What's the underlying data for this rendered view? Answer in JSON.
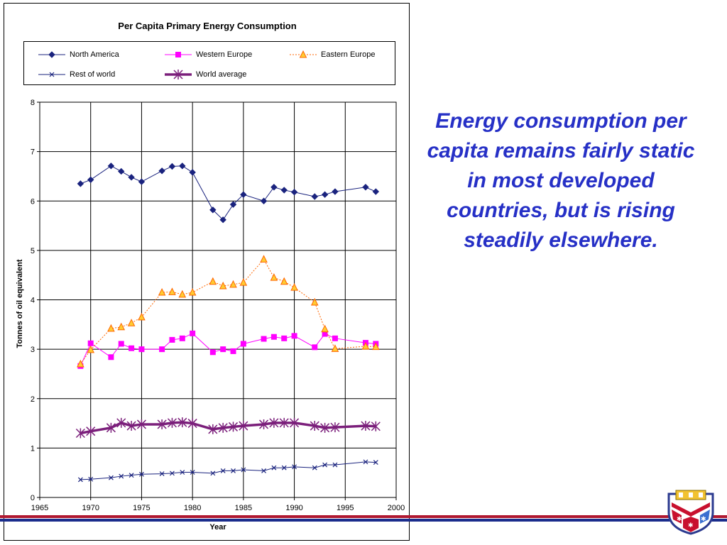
{
  "slide": {
    "callout_text": "Energy consumption per capita remains fairly static in most developed countries, but is rising steadily elsewhere.",
    "callout_color": "#2630c6",
    "band_colors": [
      "#b01830",
      "#1a2d8c"
    ],
    "crest_icon": "university-crest-icon"
  },
  "chart_data": {
    "type": "line",
    "title": "Per Capita Primary Energy Consumption",
    "xlabel": "Year",
    "ylabel": "Tonnes of oil equivalent",
    "xlim": [
      1965,
      2000
    ],
    "ylim": [
      0,
      8
    ],
    "xticks": [
      1965,
      1970,
      1975,
      1980,
      1985,
      1990,
      1995,
      2000
    ],
    "yticks": [
      0,
      1,
      2,
      3,
      4,
      5,
      6,
      7,
      8
    ],
    "grid": true,
    "legend_placement": "top",
    "series": [
      {
        "name": "North America",
        "color": "#1a237e",
        "marker": "diamond",
        "line_style": "solid",
        "x": [
          1969,
          1970,
          1972,
          1973,
          1974,
          1975,
          1977,
          1978,
          1979,
          1980,
          1982,
          1983,
          1984,
          1985,
          1987,
          1988,
          1989,
          1990,
          1992,
          1993,
          1994,
          1997,
          1998
        ],
        "y": [
          6.35,
          6.43,
          6.71,
          6.6,
          6.48,
          6.39,
          6.61,
          6.7,
          6.71,
          6.58,
          5.82,
          5.62,
          5.93,
          6.13,
          6.0,
          6.28,
          6.22,
          6.18,
          6.09,
          6.13,
          6.19,
          6.28,
          6.19
        ]
      },
      {
        "name": "Western Europe",
        "color": "#ff00ff",
        "marker": "square",
        "line_style": "solid",
        "x": [
          1969,
          1970,
          1972,
          1973,
          1974,
          1975,
          1977,
          1978,
          1979,
          1980,
          1982,
          1983,
          1984,
          1985,
          1987,
          1988,
          1989,
          1990,
          1992,
          1993,
          1994,
          1997,
          1998
        ],
        "y": [
          2.66,
          3.12,
          2.84,
          3.11,
          3.02,
          3.0,
          3.0,
          3.19,
          3.22,
          3.32,
          2.94,
          3.0,
          2.96,
          3.11,
          3.21,
          3.25,
          3.22,
          3.27,
          3.04,
          3.31,
          3.22,
          3.13,
          3.11
        ]
      },
      {
        "name": "Eastern Europe",
        "color": "#ff6600",
        "marker": "triangle",
        "line_style": "dotted",
        "x": [
          1969,
          1970,
          1972,
          1973,
          1974,
          1975,
          1977,
          1978,
          1979,
          1980,
          1982,
          1983,
          1984,
          1985,
          1987,
          1988,
          1989,
          1990,
          1992,
          1993,
          1994,
          1997,
          1998
        ],
        "y": [
          2.7,
          2.99,
          3.42,
          3.45,
          3.53,
          3.65,
          4.15,
          4.16,
          4.11,
          4.15,
          4.37,
          4.28,
          4.31,
          4.35,
          4.82,
          4.45,
          4.37,
          4.25,
          3.95,
          3.41,
          3.01,
          3.06,
          3.05
        ]
      },
      {
        "name": "Rest of world",
        "color": "#1a237e",
        "marker": "x",
        "line_style": "solid",
        "x": [
          1969,
          1970,
          1972,
          1973,
          1974,
          1975,
          1977,
          1978,
          1979,
          1980,
          1982,
          1983,
          1984,
          1985,
          1987,
          1988,
          1989,
          1990,
          1992,
          1993,
          1994,
          1997,
          1998
        ],
        "y": [
          0.36,
          0.37,
          0.4,
          0.43,
          0.45,
          0.47,
          0.48,
          0.49,
          0.51,
          0.51,
          0.49,
          0.54,
          0.54,
          0.56,
          0.54,
          0.6,
          0.6,
          0.62,
          0.6,
          0.66,
          0.66,
          0.72,
          0.71
        ]
      },
      {
        "name": "World average",
        "color": "#7b1f7b",
        "marker": "asterisk",
        "line_style": "thick",
        "x": [
          1969,
          1970,
          1972,
          1973,
          1974,
          1975,
          1977,
          1978,
          1979,
          1980,
          1982,
          1983,
          1984,
          1985,
          1987,
          1988,
          1989,
          1990,
          1992,
          1993,
          1994,
          1997,
          1998
        ],
        "y": [
          1.3,
          1.34,
          1.41,
          1.51,
          1.45,
          1.48,
          1.48,
          1.51,
          1.52,
          1.5,
          1.38,
          1.41,
          1.43,
          1.45,
          1.48,
          1.51,
          1.51,
          1.51,
          1.45,
          1.41,
          1.42,
          1.45,
          1.44
        ]
      }
    ]
  }
}
